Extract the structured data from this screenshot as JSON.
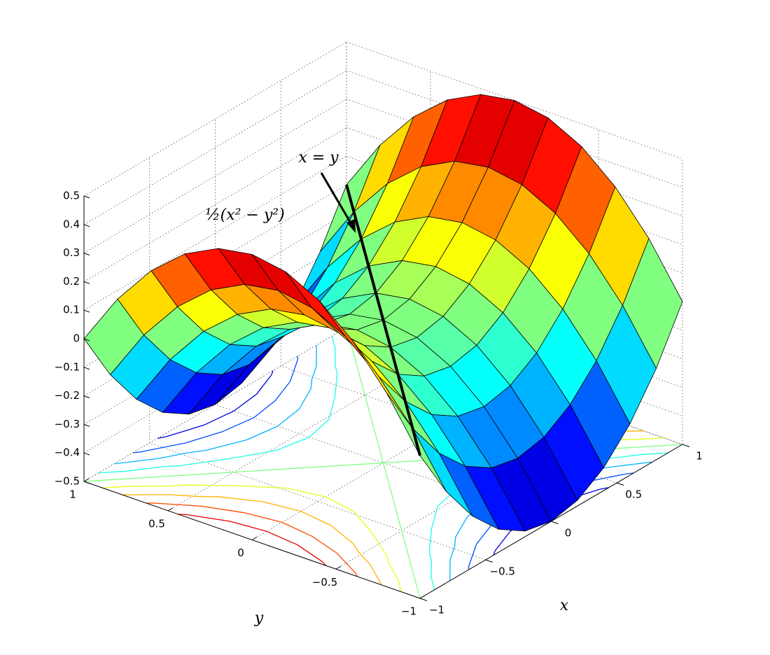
{
  "chart_data": {
    "type": "surface",
    "annotations": [
      "x = y",
      "½(x² − y²)"
    ],
    "xlabel": "x",
    "ylabel": "y",
    "colormap": "jet",
    "grid": true,
    "x": [
      -1,
      -0.8,
      -0.6,
      -0.4,
      -0.2,
      0,
      0.2,
      0.4,
      0.6,
      0.8,
      1
    ],
    "y": [
      -1,
      -0.8,
      -0.6,
      -0.4,
      -0.2,
      0,
      0.2,
      0.4,
      0.6,
      0.8,
      1
    ],
    "z": [
      [
        0,
        -0.18,
        -0.32,
        -0.42,
        -0.48,
        -0.5,
        -0.48,
        -0.42,
        -0.32,
        -0.18,
        0
      ],
      [
        0.18,
        0,
        -0.14,
        -0.24,
        -0.3,
        -0.32,
        -0.3,
        -0.24,
        -0.14,
        0,
        0.18
      ],
      [
        0.32,
        0.14,
        0,
        -0.1,
        -0.16,
        -0.18,
        -0.16,
        -0.1,
        0,
        0.14,
        0.32
      ],
      [
        0.42,
        0.24,
        0.1,
        0,
        -0.06,
        -0.08,
        -0.06,
        0,
        0.1,
        0.24,
        0.42
      ],
      [
        0.48,
        0.3,
        0.16,
        0.06,
        0,
        -0.02,
        0,
        0.06,
        0.16,
        0.3,
        0.48
      ],
      [
        0.5,
        0.32,
        0.18,
        0.08,
        0.02,
        0,
        0.02,
        0.08,
        0.18,
        0.32,
        0.5
      ],
      [
        0.48,
        0.3,
        0.16,
        0.06,
        0,
        -0.02,
        0,
        0.06,
        0.16,
        0.3,
        0.48
      ],
      [
        0.42,
        0.24,
        0.1,
        0,
        -0.06,
        -0.08,
        -0.06,
        0,
        0.1,
        0.24,
        0.42
      ],
      [
        0.32,
        0.14,
        0,
        -0.1,
        -0.16,
        -0.18,
        -0.16,
        -0.1,
        0,
        0.14,
        0.32
      ],
      [
        0.18,
        0,
        -0.14,
        -0.24,
        -0.3,
        -0.32,
        -0.3,
        -0.24,
        -0.14,
        0,
        0.18
      ],
      [
        0,
        -0.18,
        -0.32,
        -0.42,
        -0.48,
        -0.5,
        -0.48,
        -0.42,
        -0.32,
        -0.18,
        0
      ]
    ],
    "contour_levels": [
      -0.4,
      -0.3,
      -0.2,
      -0.1,
      0,
      0.1,
      0.2,
      0.3,
      0.4
    ],
    "xlim": [
      -1,
      1
    ],
    "ylim": [
      -1,
      1
    ],
    "zlim": [
      -0.5,
      0.5
    ],
    "xticks": [
      {
        "value": -1,
        "label": "−1"
      },
      {
        "value": -0.5,
        "label": "−0.5"
      },
      0,
      0.5,
      1
    ],
    "yticks": [
      {
        "value": -1,
        "label": "−1"
      },
      {
        "value": -0.5,
        "label": "−0.5"
      },
      0,
      0.5,
      1
    ],
    "zticks": [
      {
        "value": -0.5,
        "label": "−0.5"
      },
      {
        "value": -0.4,
        "label": "−0.4"
      },
      {
        "value": -0.3,
        "label": "−0.3"
      },
      {
        "value": -0.2,
        "label": "−0.2"
      },
      {
        "value": -0.1,
        "label": "−0.1"
      },
      0,
      0.1,
      0.2,
      0.3,
      0.4,
      0.5
    ]
  }
}
